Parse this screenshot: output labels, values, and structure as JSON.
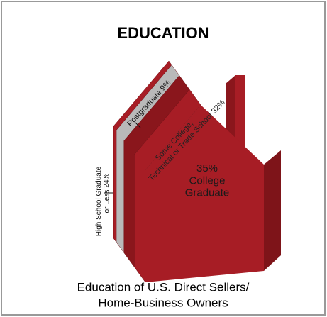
{
  "chart_data": {
    "type": "house",
    "title": "EDUCATION",
    "caption": [
      "Education of U.S. Direct Sellers/",
      "Home-Business Owners"
    ],
    "categories": [
      "College Graduate",
      "Some College, Technical or Trade School",
      "High School Graduate or Less",
      "Postgraduate"
    ],
    "values": [
      35,
      32,
      24,
      9
    ],
    "value_labels": [
      "35%",
      "32%",
      "24%",
      "9%"
    ],
    "colors": [
      "#a71d25",
      "#8a161c",
      "#b9b9b9",
      "#a71d25"
    ]
  }
}
